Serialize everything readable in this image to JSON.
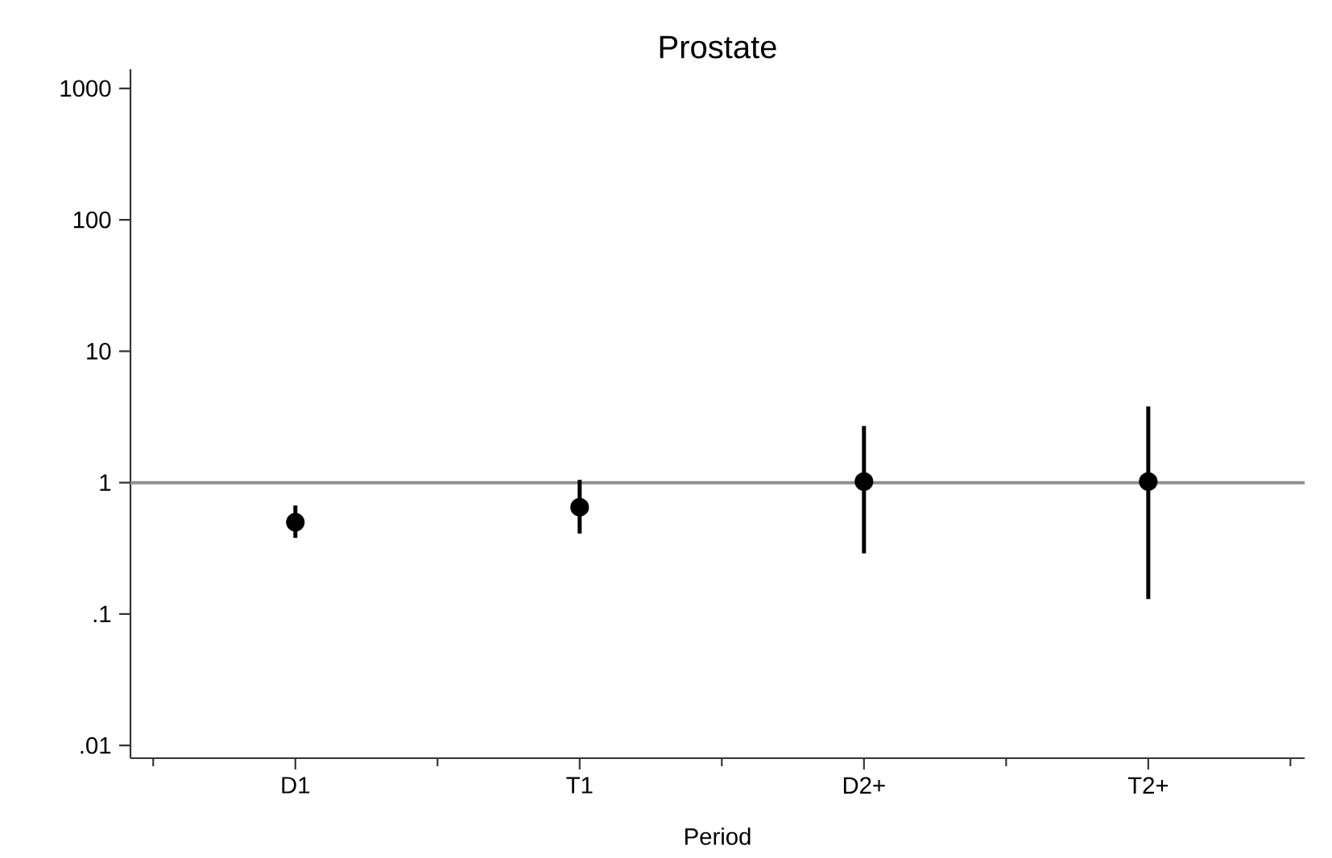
{
  "chart_data": {
    "type": "scatter",
    "title": "Prostate",
    "xlabel": "Period",
    "categories": [
      "D1",
      "T1",
      "D2+",
      "T2+"
    ],
    "series": [
      {
        "color": "#000000",
        "values": [
          0.5,
          0.65,
          1.02,
          1.02
        ],
        "errors": [
          [
            0.38,
            0.67
          ],
          [
            0.41,
            1.05
          ],
          [
            0.29,
            2.7
          ],
          [
            0.13,
            3.8
          ]
        ]
      }
    ],
    "log": "y",
    "ylim": [
      0.008,
      1400
    ],
    "yticks": [
      {
        "value": 0.01,
        "label": ".01"
      },
      {
        "value": 0.1,
        "label": ".1"
      },
      1,
      10,
      100,
      1000
    ],
    "ref_lines": [
      {
        "axis": "y",
        "value": 1,
        "color": "#909090"
      }
    ],
    "marker": "circle",
    "grid": false
  }
}
